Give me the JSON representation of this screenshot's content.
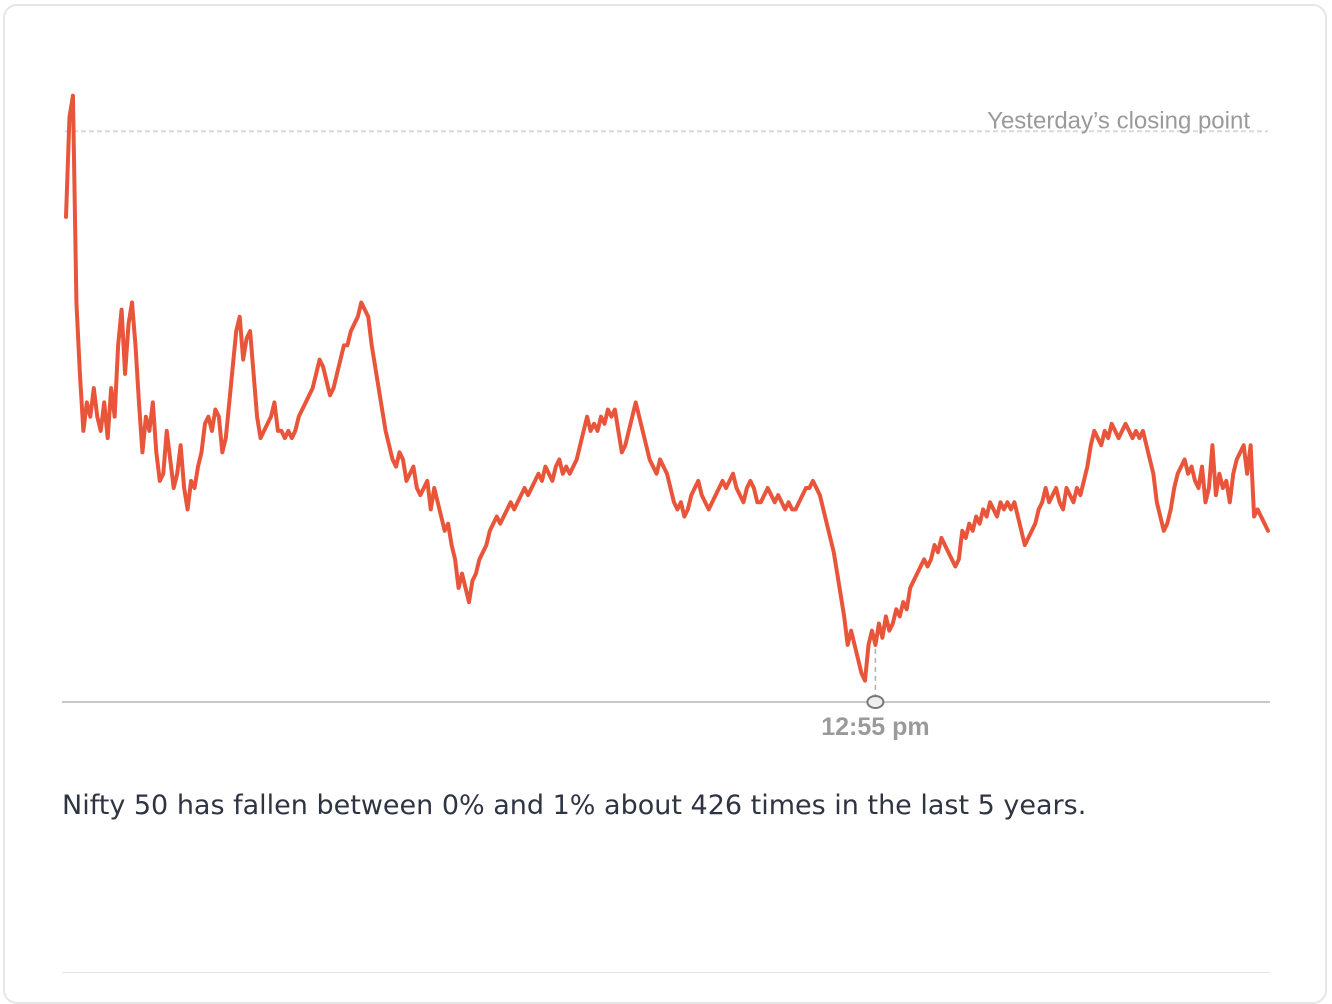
{
  "chart_data": {
    "type": "line",
    "ylim": [
      -0.8,
      0.1
    ],
    "reference_line": {
      "label": "Yesterday’s closing point",
      "y": 0.0
    },
    "marker": {
      "label": "12:55 pm",
      "index": 233
    },
    "series": [
      {
        "values": [
          -0.12,
          0.02,
          0.05,
          -0.24,
          -0.34,
          -0.42,
          -0.38,
          -0.4,
          -0.36,
          -0.4,
          -0.42,
          -0.38,
          -0.43,
          -0.36,
          -0.4,
          -0.3,
          -0.25,
          -0.34,
          -0.27,
          -0.24,
          -0.3,
          -0.38,
          -0.45,
          -0.4,
          -0.42,
          -0.38,
          -0.45,
          -0.49,
          -0.48,
          -0.42,
          -0.46,
          -0.5,
          -0.48,
          -0.44,
          -0.5,
          -0.53,
          -0.49,
          -0.5,
          -0.47,
          -0.45,
          -0.41,
          -0.4,
          -0.42,
          -0.39,
          -0.4,
          -0.45,
          -0.43,
          -0.38,
          -0.33,
          -0.28,
          -0.26,
          -0.32,
          -0.29,
          -0.28,
          -0.34,
          -0.4,
          -0.43,
          -0.42,
          -0.41,
          -0.4,
          -0.38,
          -0.42,
          -0.42,
          -0.43,
          -0.42,
          -0.43,
          -0.42,
          -0.4,
          -0.39,
          -0.38,
          -0.37,
          -0.36,
          -0.34,
          -0.32,
          -0.33,
          -0.35,
          -0.37,
          -0.36,
          -0.34,
          -0.32,
          -0.3,
          -0.3,
          -0.28,
          -0.27,
          -0.26,
          -0.24,
          -0.25,
          -0.26,
          -0.3,
          -0.33,
          -0.36,
          -0.39,
          -0.42,
          -0.44,
          -0.46,
          -0.47,
          -0.45,
          -0.46,
          -0.49,
          -0.48,
          -0.47,
          -0.5,
          -0.51,
          -0.5,
          -0.49,
          -0.53,
          -0.5,
          -0.52,
          -0.54,
          -0.56,
          -0.55,
          -0.58,
          -0.6,
          -0.64,
          -0.62,
          -0.64,
          -0.66,
          -0.63,
          -0.62,
          -0.6,
          -0.59,
          -0.58,
          -0.56,
          -0.55,
          -0.54,
          -0.55,
          -0.54,
          -0.53,
          -0.52,
          -0.53,
          -0.52,
          -0.51,
          -0.5,
          -0.51,
          -0.5,
          -0.49,
          -0.48,
          -0.49,
          -0.47,
          -0.48,
          -0.49,
          -0.47,
          -0.46,
          -0.48,
          -0.47,
          -0.48,
          -0.47,
          -0.46,
          -0.44,
          -0.42,
          -0.4,
          -0.42,
          -0.41,
          -0.42,
          -0.4,
          -0.41,
          -0.39,
          -0.4,
          -0.39,
          -0.42,
          -0.45,
          -0.44,
          -0.42,
          -0.4,
          -0.38,
          -0.4,
          -0.42,
          -0.44,
          -0.46,
          -0.47,
          -0.48,
          -0.46,
          -0.47,
          -0.48,
          -0.5,
          -0.52,
          -0.53,
          -0.52,
          -0.54,
          -0.53,
          -0.51,
          -0.5,
          -0.49,
          -0.51,
          -0.52,
          -0.53,
          -0.52,
          -0.51,
          -0.5,
          -0.49,
          -0.5,
          -0.49,
          -0.48,
          -0.5,
          -0.51,
          -0.52,
          -0.5,
          -0.49,
          -0.5,
          -0.52,
          -0.52,
          -0.51,
          -0.5,
          -0.51,
          -0.52,
          -0.51,
          -0.52,
          -0.53,
          -0.52,
          -0.53,
          -0.53,
          -0.52,
          -0.51,
          -0.5,
          -0.5,
          -0.49,
          -0.5,
          -0.51,
          -0.53,
          -0.55,
          -0.57,
          -0.59,
          -0.62,
          -0.65,
          -0.68,
          -0.72,
          -0.7,
          -0.72,
          -0.74,
          -0.76,
          -0.77,
          -0.72,
          -0.7,
          -0.72,
          -0.69,
          -0.71,
          -0.68,
          -0.7,
          -0.69,
          -0.67,
          -0.68,
          -0.66,
          -0.67,
          -0.64,
          -0.63,
          -0.62,
          -0.61,
          -0.6,
          -0.61,
          -0.6,
          -0.58,
          -0.59,
          -0.57,
          -0.58,
          -0.59,
          -0.6,
          -0.61,
          -0.6,
          -0.56,
          -0.57,
          -0.55,
          -0.56,
          -0.54,
          -0.55,
          -0.53,
          -0.54,
          -0.52,
          -0.53,
          -0.54,
          -0.52,
          -0.53,
          -0.52,
          -0.53,
          -0.52,
          -0.54,
          -0.56,
          -0.58,
          -0.57,
          -0.56,
          -0.55,
          -0.53,
          -0.52,
          -0.5,
          -0.52,
          -0.51,
          -0.5,
          -0.52,
          -0.53,
          -0.5,
          -0.51,
          -0.52,
          -0.5,
          -0.51,
          -0.49,
          -0.47,
          -0.44,
          -0.42,
          -0.43,
          -0.44,
          -0.42,
          -0.43,
          -0.41,
          -0.42,
          -0.43,
          -0.42,
          -0.41,
          -0.42,
          -0.43,
          -0.42,
          -0.43,
          -0.42,
          -0.44,
          -0.46,
          -0.48,
          -0.52,
          -0.54,
          -0.56,
          -0.55,
          -0.53,
          -0.5,
          -0.48,
          -0.47,
          -0.46,
          -0.48,
          -0.47,
          -0.49,
          -0.5,
          -0.47,
          -0.52,
          -0.5,
          -0.44,
          -0.51,
          -0.48,
          -0.5,
          -0.49,
          -0.52,
          -0.48,
          -0.46,
          -0.45,
          -0.44,
          -0.48,
          -0.44,
          -0.54,
          -0.53,
          -0.54,
          -0.55,
          -0.56
        ]
      }
    ]
  },
  "summary": {
    "text": "Nifty 50 has fallen between 0% and 1% about 426 times in the last 5 years."
  },
  "colors": {
    "line": "#e8553a",
    "reference": "#d9d9d9",
    "baseline": "#c9c9c9",
    "text_muted": "#9a9a9a",
    "text_body": "#2f3442"
  }
}
